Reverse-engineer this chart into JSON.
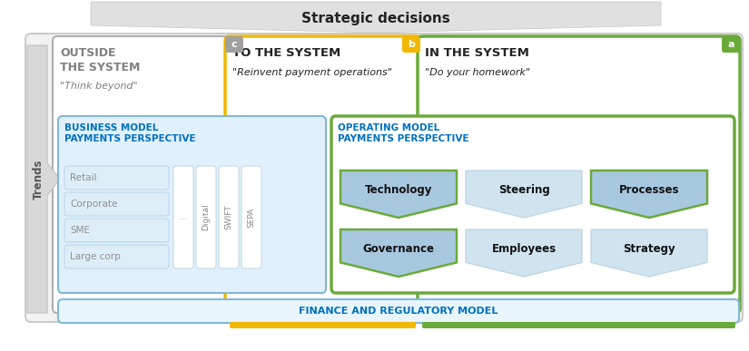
{
  "title": "Strategic decisions",
  "bg_color": "#ffffff",
  "outside_title": "OUTSIDE\nTHE SYSTEM",
  "outside_subtitle": "\"Think beyond\"",
  "to_system_title": "TO THE SYSTEM",
  "to_system_subtitle": "\"Reinvent payment operations\"",
  "in_system_title": "IN THE SYSTEM",
  "in_system_subtitle": "\"Do your homework\"",
  "biz_model_title": "BUSINESS MODEL\nPAYMENTS PERSPECTIVE",
  "op_model_title": "OPERATING MODEL\nPAYMENTS PERSPECTIVE",
  "finance_label": "FINANCE AND REGULATORY MODEL",
  "trends_label": "Trends",
  "segments": [
    "Retail",
    "Corporate",
    "SME",
    "Large corp"
  ],
  "cols": [
    "...",
    "Digital",
    "SWIFT",
    "SEPA"
  ],
  "hexagons_top": [
    "Technology",
    "Steering",
    "Processes"
  ],
  "hexagons_bot": [
    "Governance",
    "Employees",
    "Strategy"
  ],
  "hex_dark_color": "#a8c8e0",
  "hex_light_color": "#d0e4f0",
  "hex_dark_border": "#6aaa3a",
  "hex_light_border": "#b8d0e0",
  "green_border": "#6aaa3a",
  "yellow_border": "#f0b800",
  "blue_border": "#80b8d8",
  "light_blue_fill": "#e0f0fc",
  "gray_text": "#909090",
  "dark_text": "#222222",
  "blue_title_color": "#0070c0",
  "outside_text_color": "#808080",
  "label_bg_c": "#a0a0a0",
  "label_bg_b": "#f0b800",
  "label_bg_a": "#6aaa3a"
}
